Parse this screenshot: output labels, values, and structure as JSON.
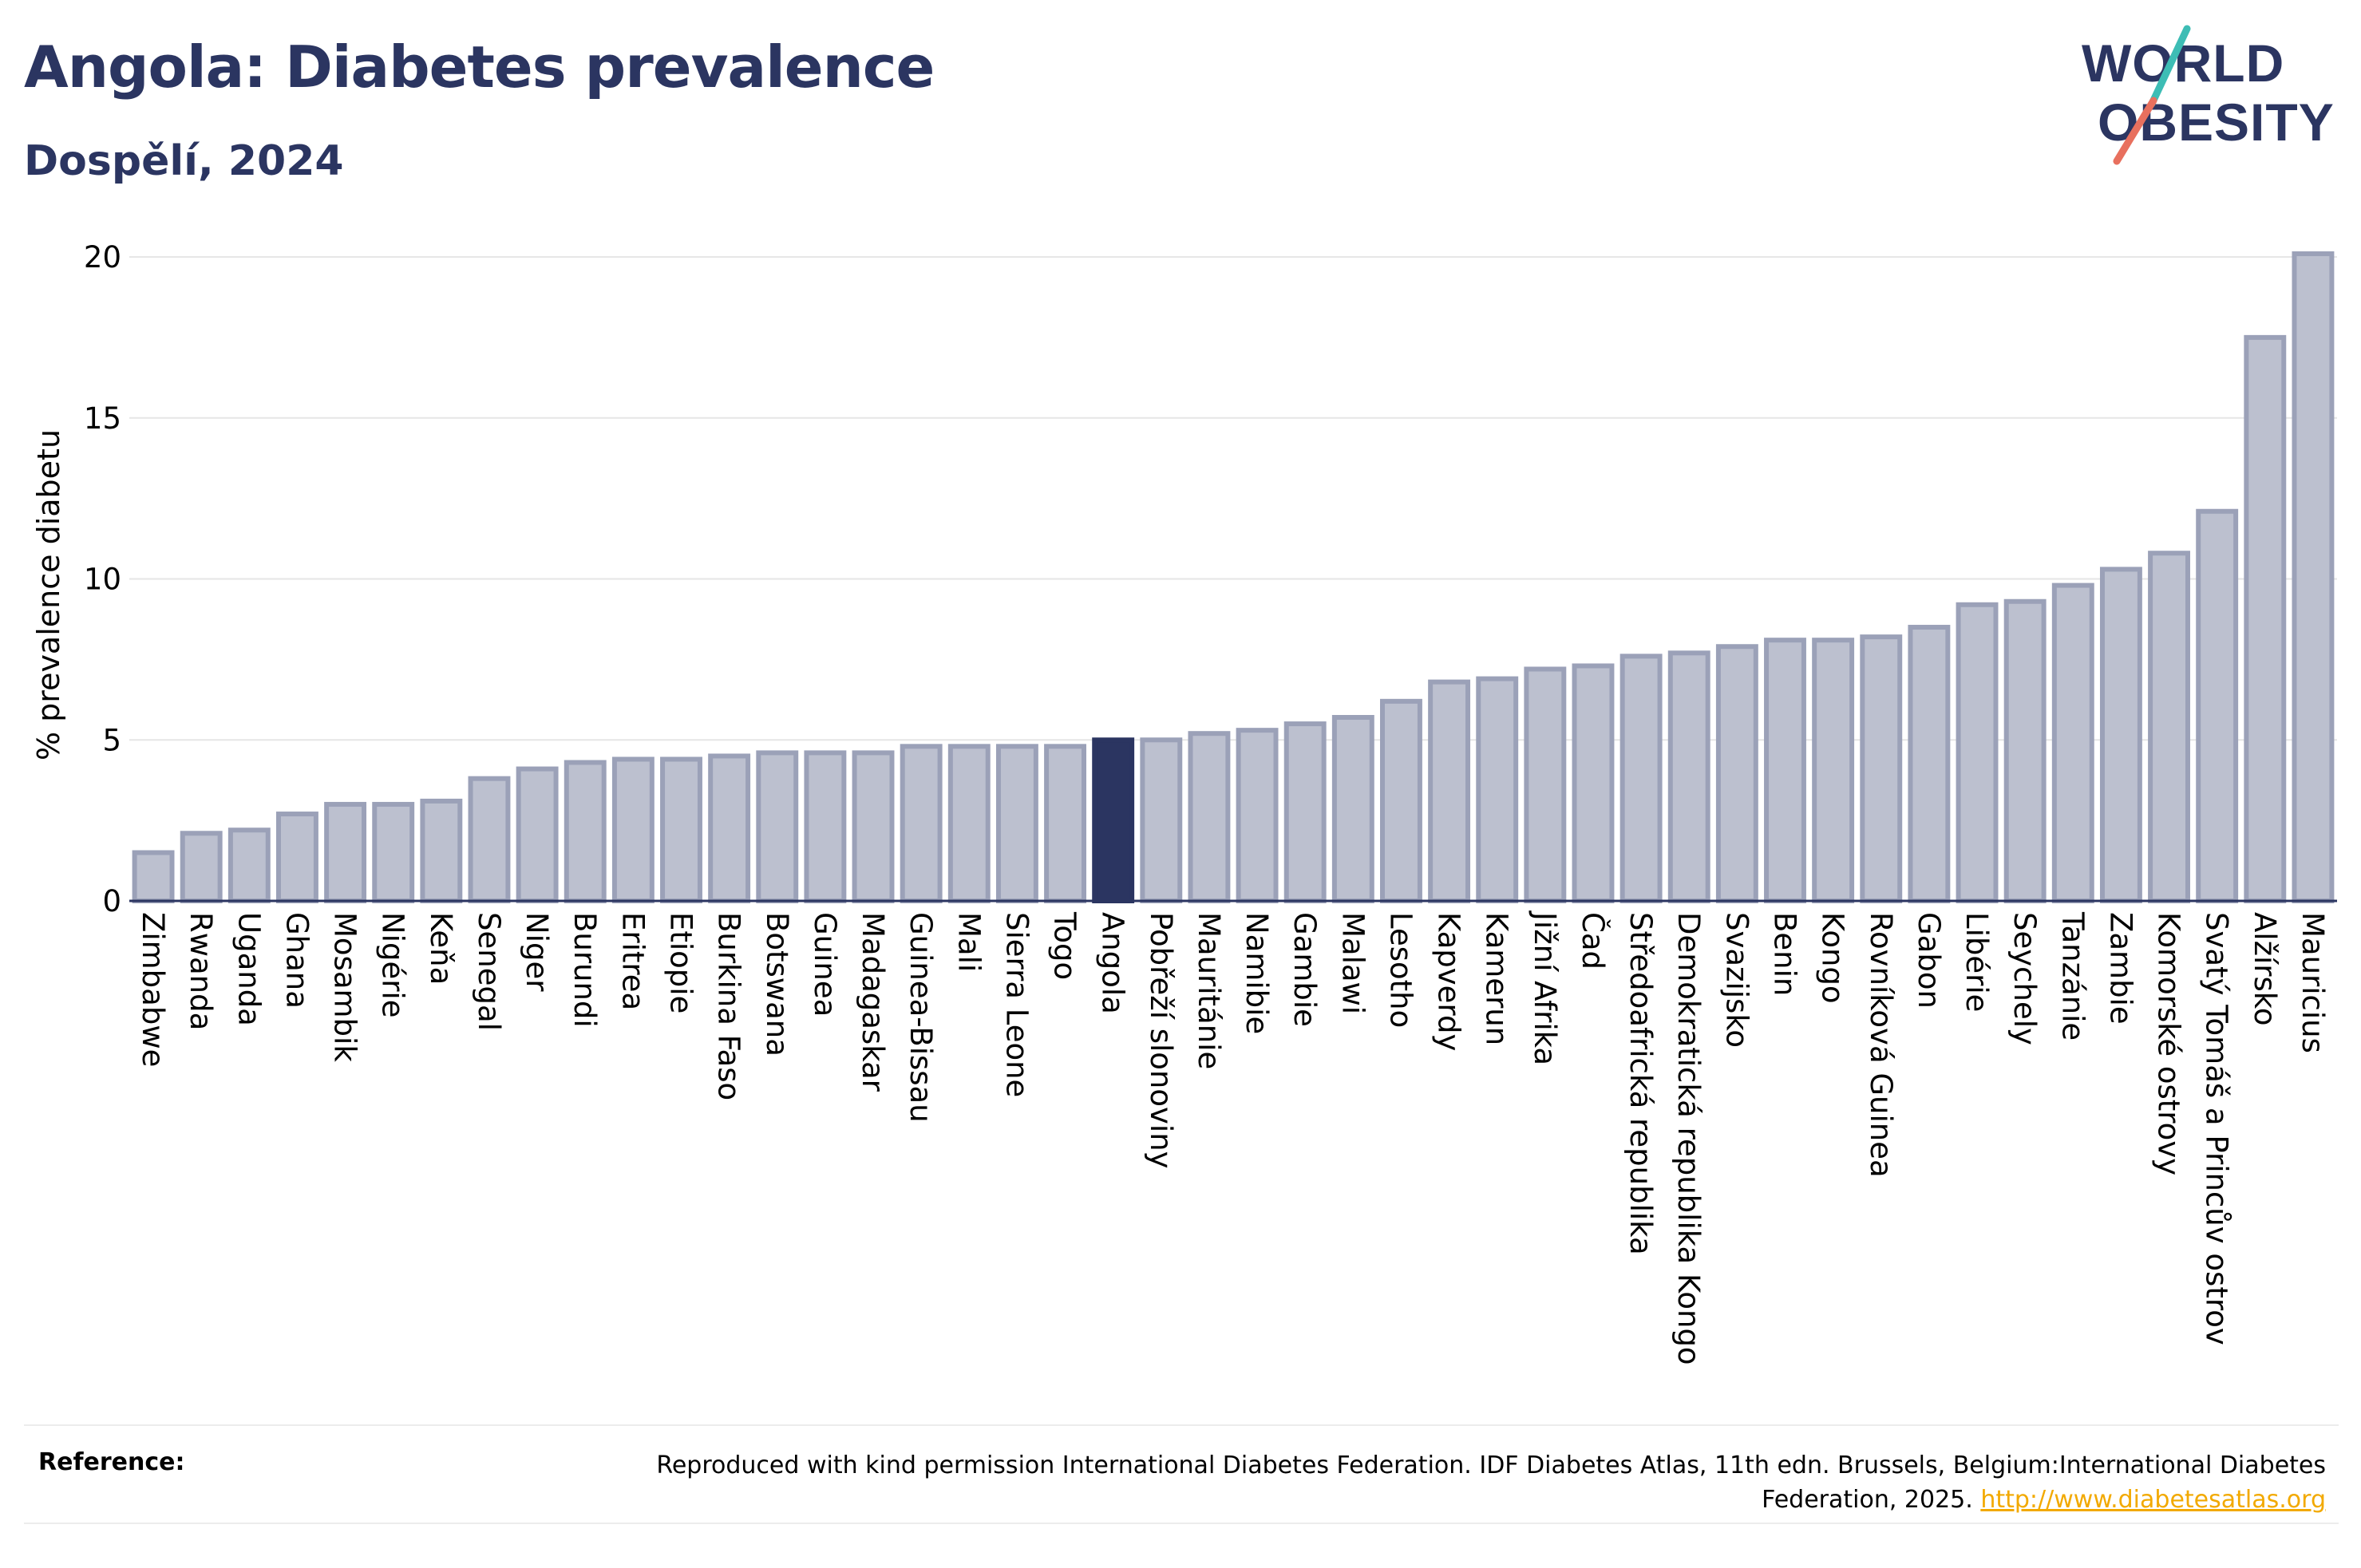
{
  "header": {
    "title": "Angola: Diabetes prevalence",
    "subtitle": "Dospělí, 2024"
  },
  "logo": {
    "line1": "WORLD",
    "line2": "OBESITY"
  },
  "colors": {
    "bar": "#bcc0cf",
    "bar_stroke": "#9ba1b8",
    "highlight": "#2b3561",
    "title": "#2b3561",
    "grid": "#e6e6e6",
    "link": "#f2a900",
    "logo_slash_top": "#3dbdb5",
    "logo_slash_bottom": "#e8705e"
  },
  "chart_data": {
    "type": "bar",
    "ylabel": "% prevalence diabetu",
    "xlabel": "",
    "ylim": [
      0,
      20
    ],
    "yticks": [
      0,
      5,
      10,
      15,
      20
    ],
    "grid": true,
    "highlight": "Angola",
    "categories": [
      "Zimbabwe",
      "Rwanda",
      "Uganda",
      "Ghana",
      "Mosambik",
      "Nigérie",
      "Keňa",
      "Senegal",
      "Niger",
      "Burundi",
      "Eritrea",
      "Etiopie",
      "Burkina Faso",
      "Botswana",
      "Guinea",
      "Madagaskar",
      "Guinea-Bissau",
      "Mali",
      "Sierra Leone",
      "Togo",
      "Angola",
      "Pobřeží slonoviny",
      "Mauritánie",
      "Namibie",
      "Gambie",
      "Malawi",
      "Lesotho",
      "Kapverdy",
      "Kamerun",
      "Jižní Afrika",
      "Čad",
      "Středoafrická republika",
      "Demokratická republika Kongo",
      "Svazijsko",
      "Benin",
      "Kongo",
      "Rovníková Guinea",
      "Gabon",
      "Libérie",
      "Seychely",
      "Tanzánie",
      "Zambie",
      "Komorské ostrovy",
      "Svatý Tomáš a Princův ostrov",
      "Alžírsko",
      "Mauricius"
    ],
    "values": [
      1.5,
      2.1,
      2.2,
      2.7,
      3.0,
      3.0,
      3.1,
      3.8,
      4.1,
      4.3,
      4.4,
      4.4,
      4.5,
      4.6,
      4.6,
      4.6,
      4.8,
      4.8,
      4.8,
      4.8,
      5.0,
      5.0,
      5.2,
      5.3,
      5.5,
      5.7,
      6.2,
      6.8,
      6.9,
      7.2,
      7.3,
      7.6,
      7.7,
      7.9,
      8.1,
      8.1,
      8.2,
      8.5,
      9.2,
      9.3,
      9.8,
      10.3,
      10.8,
      12.1,
      17.5,
      20.1
    ]
  },
  "footer": {
    "reference_label": "Reference:",
    "reference_text": "Reproduced with kind permission International Diabetes Federation. IDF Diabetes Atlas, 11th edn. Brussels, Belgium:International Diabetes Federation, 2025.",
    "reference_link": "http://www.diabetesatlas.org"
  }
}
